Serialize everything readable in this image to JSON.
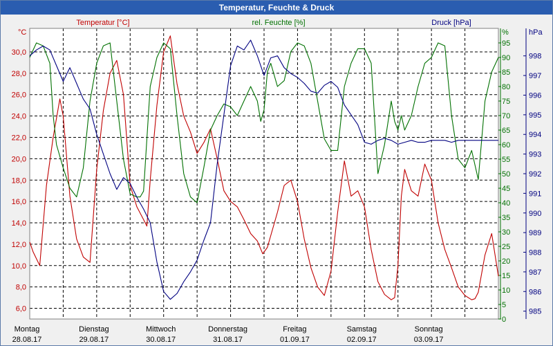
{
  "window": {
    "title": "Temperatur, Feuchte & Druck"
  },
  "chart_data": {
    "type": "line",
    "title": "Temperatur, Feuchte & Druck",
    "axes": {
      "temperature": {
        "label": "Temperatur [°C]",
        "unit": "°C",
        "range": [
          5.0,
          32.2
        ],
        "ticks": [
          "6,0",
          "8,0",
          "10,0",
          "12,0",
          "14,0",
          "16,0",
          "18,0",
          "20,0",
          "22,0",
          "24,0",
          "26,0",
          "28,0",
          "30,0"
        ]
      },
      "humidity": {
        "label": "rel. Feuchte [%]",
        "unit": "%",
        "range": [
          0,
          100
        ],
        "ticks": [
          "0",
          "5",
          "10",
          "15",
          "20",
          "25",
          "30",
          "35",
          "40",
          "45",
          "50",
          "55",
          "60",
          "65",
          "70",
          "75",
          "80",
          "85",
          "90",
          "95"
        ]
      },
      "pressure": {
        "label": "Druck [hPa]",
        "unit": "hPa",
        "range": [
          984.6,
          999.4
        ],
        "ticks": [
          "985",
          "986",
          "987",
          "988",
          "989",
          "990",
          "991",
          "992",
          "993",
          "994",
          "995",
          "996",
          "997",
          "998"
        ]
      }
    },
    "x_range": [
      0,
      7
    ],
    "x_labels": [
      {
        "day": "Montag",
        "date": "28.08.17"
      },
      {
        "day": "Dienstag",
        "date": "29.08.17"
      },
      {
        "day": "Mittwoch",
        "date": "30.08.17"
      },
      {
        "day": "Donnerstag",
        "date": "31.08.17"
      },
      {
        "day": "Freitag",
        "date": "01.09.17"
      },
      {
        "day": "Samstag",
        "date": "02.09.17"
      },
      {
        "day": "Sonntag",
        "date": "03.09.17"
      }
    ],
    "grid": true,
    "series": [
      {
        "name": "Temperatur",
        "axis": "temperature",
        "color": "#c00000",
        "x": [
          0.0,
          0.05,
          0.15,
          0.25,
          0.35,
          0.45,
          0.5,
          0.6,
          0.7,
          0.8,
          0.9,
          1.0,
          1.1,
          1.2,
          1.3,
          1.4,
          1.5,
          1.6,
          1.7,
          1.75,
          1.8,
          1.9,
          2.0,
          2.1,
          2.2,
          2.3,
          2.4,
          2.5,
          2.6,
          2.7,
          2.8,
          2.9,
          3.0,
          3.1,
          3.2,
          3.3,
          3.4,
          3.48,
          3.55,
          3.7,
          3.8,
          3.9,
          4.0,
          4.1,
          4.2,
          4.3,
          4.4,
          4.5,
          4.6,
          4.7,
          4.8,
          4.9,
          5.0,
          5.1,
          5.2,
          5.3,
          5.4,
          5.45,
          5.5,
          5.55,
          5.6,
          5.7,
          5.8,
          5.9,
          6.0,
          6.1,
          6.2,
          6.3,
          6.4,
          6.5,
          6.6,
          6.65,
          6.7,
          6.8,
          6.9,
          7.0
        ],
        "y": [
          12.2,
          11.3,
          10.0,
          17.5,
          22.0,
          25.6,
          24.0,
          16.5,
          12.5,
          10.8,
          10.3,
          19.0,
          24.5,
          28.0,
          29.2,
          26.0,
          17.5,
          15.5,
          14.3,
          13.7,
          18.0,
          25.0,
          30.0,
          31.5,
          27.0,
          24.0,
          22.5,
          20.5,
          21.5,
          22.8,
          20.0,
          17.0,
          16.0,
          15.5,
          14.3,
          13.0,
          12.3,
          11.1,
          11.7,
          15.0,
          17.5,
          18.0,
          16.0,
          12.5,
          9.8,
          8.0,
          7.2,
          9.5,
          15.0,
          19.8,
          16.5,
          17.0,
          15.5,
          11.5,
          8.5,
          7.3,
          6.8,
          7.0,
          10.0,
          16.5,
          19.0,
          17.0,
          16.5,
          19.5,
          18.0,
          14.0,
          11.5,
          9.8,
          8.0,
          7.2,
          6.8,
          6.9,
          7.5,
          11.0,
          13.0,
          9.0
        ]
      },
      {
        "name": "rel. Feuchte",
        "axis": "humidity",
        "color": "#007000",
        "x": [
          0.0,
          0.1,
          0.2,
          0.3,
          0.35,
          0.4,
          0.5,
          0.6,
          0.7,
          0.8,
          0.9,
          1.0,
          1.1,
          1.2,
          1.3,
          1.4,
          1.5,
          1.6,
          1.65,
          1.7,
          1.8,
          1.9,
          2.0,
          2.1,
          2.2,
          2.3,
          2.4,
          2.5,
          2.6,
          2.7,
          2.8,
          2.9,
          3.0,
          3.1,
          3.2,
          3.3,
          3.4,
          3.45,
          3.5,
          3.55,
          3.6,
          3.7,
          3.8,
          3.9,
          4.0,
          4.1,
          4.2,
          4.3,
          4.4,
          4.5,
          4.6,
          4.7,
          4.8,
          4.9,
          5.0,
          5.1,
          5.2,
          5.3,
          5.4,
          5.45,
          5.5,
          5.55,
          5.6,
          5.7,
          5.8,
          5.9,
          6.0,
          6.1,
          6.2,
          6.3,
          6.4,
          6.5,
          6.6,
          6.7,
          6.8,
          6.9,
          7.0
        ],
        "y": [
          90,
          95,
          94,
          88,
          70,
          60,
          52,
          45,
          42,
          52,
          75,
          88,
          94,
          95,
          75,
          55,
          43,
          42,
          42,
          44,
          80,
          90,
          95,
          93,
          70,
          50,
          42,
          40,
          52,
          65,
          70,
          74,
          73,
          70,
          75,
          80,
          75,
          68,
          72,
          85,
          88,
          80,
          82,
          92,
          95,
          94,
          88,
          75,
          62,
          58,
          58,
          80,
          88,
          93,
          93,
          88,
          50,
          60,
          75,
          68,
          65,
          70,
          65,
          70,
          80,
          88,
          90,
          95,
          94,
          70,
          55,
          52,
          58,
          48,
          75,
          85,
          90
        ]
      },
      {
        "name": "Druck",
        "axis": "pressure",
        "color": "#000080",
        "x": [
          0.0,
          0.1,
          0.2,
          0.3,
          0.4,
          0.5,
          0.6,
          0.7,
          0.75,
          0.8,
          0.9,
          1.0,
          1.1,
          1.2,
          1.3,
          1.4,
          1.5,
          1.6,
          1.7,
          1.8,
          1.9,
          2.0,
          2.1,
          2.2,
          2.3,
          2.4,
          2.5,
          2.6,
          2.7,
          2.8,
          2.9,
          3.0,
          3.1,
          3.2,
          3.3,
          3.4,
          3.5,
          3.6,
          3.7,
          3.8,
          3.9,
          4.0,
          4.1,
          4.2,
          4.3,
          4.4,
          4.5,
          4.6,
          4.7,
          4.8,
          4.9,
          5.0,
          5.1,
          5.2,
          5.3,
          5.4,
          5.5,
          5.6,
          5.7,
          5.8,
          5.9,
          6.0,
          6.1,
          6.2,
          6.3,
          6.4,
          6.5,
          6.6,
          6.7,
          6.8,
          6.9,
          7.0
        ],
        "y": [
          998.0,
          998.3,
          998.5,
          998.3,
          997.5,
          996.7,
          997.4,
          996.6,
          996.2,
          995.8,
          995.3,
          994.0,
          993.0,
          992.0,
          991.2,
          991.8,
          991.5,
          990.8,
          990.2,
          989.5,
          987.5,
          986.0,
          985.6,
          985.9,
          986.5,
          987.0,
          987.6,
          988.6,
          989.5,
          992.5,
          995.0,
          997.5,
          998.5,
          998.3,
          998.8,
          998.0,
          997.0,
          997.9,
          998.0,
          997.4,
          997.1,
          996.9,
          996.6,
          996.2,
          996.1,
          996.5,
          996.7,
          996.4,
          995.5,
          995.0,
          994.5,
          993.6,
          993.5,
          993.7,
          993.8,
          993.7,
          993.5,
          993.6,
          993.7,
          993.6,
          993.6,
          993.7,
          993.7,
          993.7,
          993.6,
          993.7,
          993.7,
          993.7,
          993.7,
          993.7,
          993.7,
          993.7
        ]
      }
    ]
  }
}
